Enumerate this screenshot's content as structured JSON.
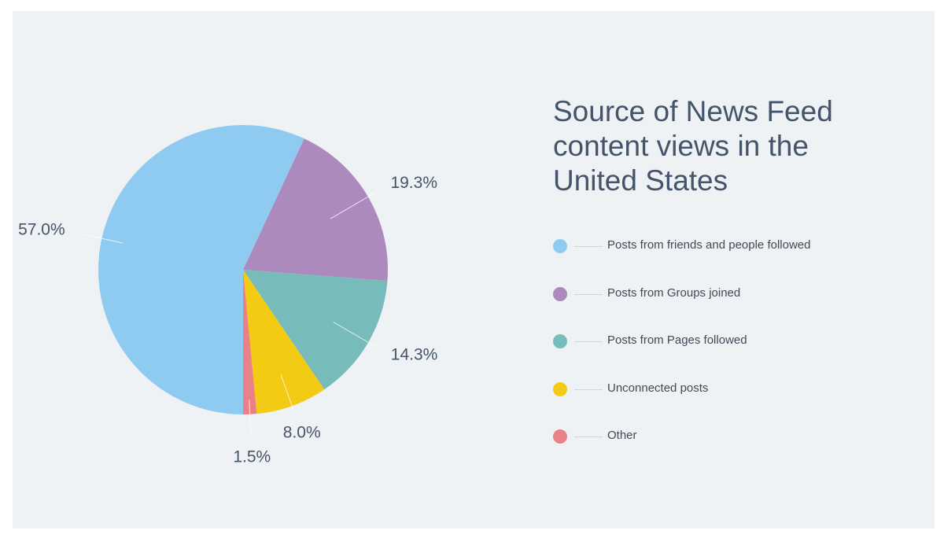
{
  "chart_data": {
    "type": "pie",
    "title": "Source of News Feed content views in the United States",
    "slices": [
      {
        "label": "Posts from friends and people followed",
        "value": 57.0,
        "value_label": "57.0%",
        "color": "#8fcbf0"
      },
      {
        "label": "Posts from Groups joined",
        "value": 19.3,
        "value_label": "19.3%",
        "color": "#ad8abd"
      },
      {
        "label": "Posts from Pages followed",
        "value": 14.3,
        "value_label": "14.3%",
        "color": "#78bbbb"
      },
      {
        "label": "Unconnected posts",
        "value": 8.0,
        "value_label": "8.0%",
        "color": "#f3cb15"
      },
      {
        "label": "Other",
        "value": 1.5,
        "value_label": "1.5%",
        "color": "#ea8187"
      }
    ],
    "start_angle_deg": 90,
    "direction": "clockwise",
    "legend_position": "right"
  }
}
